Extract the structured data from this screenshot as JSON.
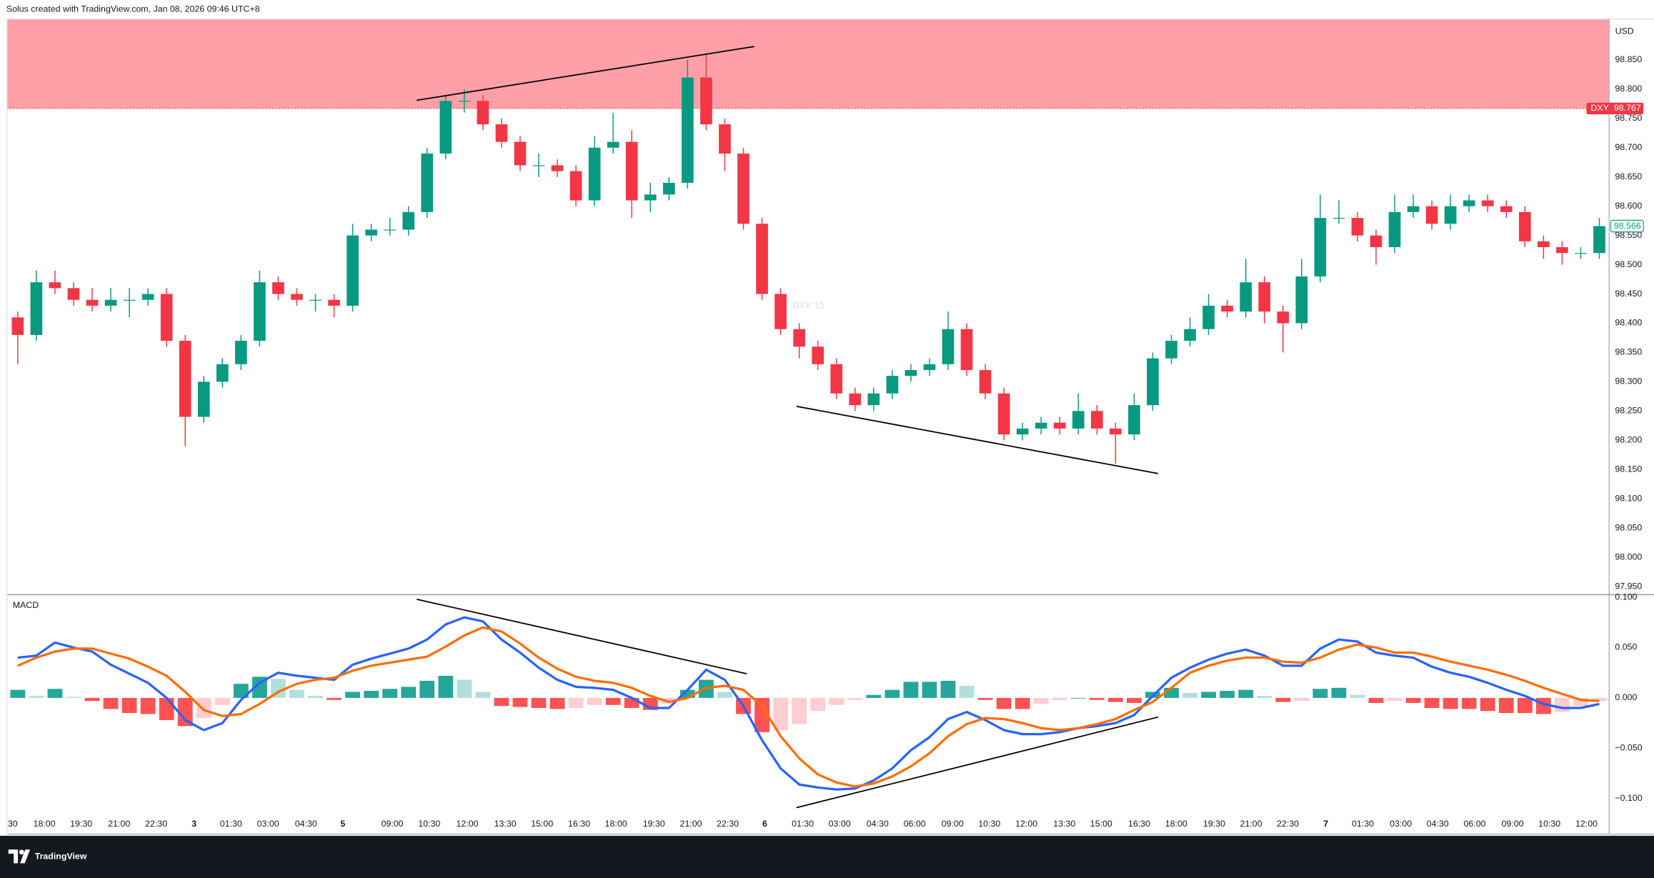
{
  "header": "Solus created with TradingView.com, Jan 08, 2026 09:46 UTC+8",
  "footer": "TradingView",
  "chart_data": [
    {
      "type": "candlestick",
      "symbol": "DXY",
      "watermark": "DXY, 15",
      "currency": "USD",
      "open": [
        98.41,
        98.38,
        98.47,
        98.46,
        98.44,
        98.43,
        98.44,
        98.44,
        98.45,
        98.37,
        98.24,
        98.3,
        98.33,
        98.37,
        98.47,
        98.45,
        98.44,
        98.44,
        98.43,
        98.55,
        98.56,
        98.56,
        98.59,
        98.69,
        98.78,
        98.78,
        98.74,
        98.71,
        98.67,
        98.67,
        98.66,
        98.61,
        98.7,
        98.71,
        98.61,
        98.62,
        98.64,
        98.82,
        98.74,
        98.69,
        98.57,
        98.45,
        98.39,
        98.36,
        98.33,
        98.28,
        98.26,
        98.28,
        98.31,
        98.32,
        98.33,
        98.39,
        98.32,
        98.28,
        98.21,
        98.22,
        98.23,
        98.22,
        98.25,
        98.22,
        98.21,
        98.26,
        98.34,
        98.37,
        98.39,
        98.43,
        98.42,
        98.47,
        98.42,
        98.4,
        98.48,
        98.58,
        98.58,
        98.55,
        98.53,
        98.59,
        98.6,
        98.57,
        98.6,
        98.61,
        98.6,
        98.59,
        98.54,
        98.53,
        98.52,
        98.52
      ],
      "high": [
        98.42,
        98.49,
        98.49,
        98.47,
        98.46,
        98.46,
        98.46,
        98.46,
        98.46,
        98.38,
        98.31,
        98.34,
        98.38,
        98.49,
        98.48,
        98.46,
        98.45,
        98.45,
        98.57,
        98.57,
        98.58,
        98.6,
        98.7,
        98.79,
        98.8,
        98.79,
        98.75,
        98.72,
        98.69,
        98.68,
        98.67,
        98.72,
        98.76,
        98.73,
        98.64,
        98.65,
        98.85,
        98.86,
        98.75,
        98.7,
        98.58,
        98.46,
        98.4,
        98.37,
        98.34,
        98.29,
        98.29,
        98.32,
        98.33,
        98.34,
        98.42,
        98.4,
        98.33,
        98.29,
        98.23,
        98.24,
        98.24,
        98.28,
        98.26,
        98.23,
        98.28,
        98.35,
        98.38,
        98.41,
        98.45,
        98.44,
        98.51,
        98.48,
        98.43,
        98.51,
        98.62,
        98.61,
        98.59,
        98.56,
        98.62,
        98.62,
        98.61,
        98.62,
        98.62,
        98.62,
        98.61,
        98.6,
        98.55,
        98.54,
        98.53,
        98.58
      ],
      "low": [
        98.33,
        98.37,
        98.45,
        98.43,
        98.42,
        98.42,
        98.41,
        98.43,
        98.36,
        98.19,
        98.23,
        98.29,
        98.32,
        98.36,
        98.44,
        98.43,
        98.42,
        98.41,
        98.42,
        98.54,
        98.55,
        98.55,
        98.58,
        98.68,
        98.76,
        98.73,
        98.7,
        98.66,
        98.65,
        98.65,
        98.6,
        98.6,
        98.69,
        98.58,
        98.59,
        98.61,
        98.63,
        98.73,
        98.66,
        98.56,
        98.44,
        98.38,
        98.34,
        98.32,
        98.27,
        98.25,
        98.25,
        98.27,
        98.3,
        98.31,
        98.32,
        98.31,
        98.27,
        98.2,
        98.2,
        98.21,
        98.21,
        98.21,
        98.21,
        98.16,
        98.2,
        98.25,
        98.33,
        98.36,
        98.38,
        98.41,
        98.41,
        98.4,
        98.35,
        98.39,
        98.47,
        98.57,
        98.54,
        98.5,
        98.52,
        98.58,
        98.56,
        98.56,
        98.59,
        98.59,
        98.58,
        98.53,
        98.51,
        98.5,
        98.51,
        98.51
      ],
      "close": [
        98.38,
        98.47,
        98.46,
        98.44,
        98.43,
        98.44,
        98.44,
        98.45,
        98.37,
        98.24,
        98.3,
        98.33,
        98.37,
        98.47,
        98.45,
        98.44,
        98.44,
        98.43,
        98.55,
        98.56,
        98.56,
        98.59,
        98.69,
        98.78,
        98.78,
        98.74,
        98.71,
        98.67,
        98.67,
        98.66,
        98.61,
        98.7,
        98.71,
        98.61,
        98.62,
        98.64,
        98.82,
        98.74,
        98.69,
        98.57,
        98.45,
        98.39,
        98.36,
        98.33,
        98.28,
        98.26,
        98.28,
        98.31,
        98.32,
        98.33,
        98.39,
        98.32,
        98.28,
        98.21,
        98.22,
        98.23,
        98.22,
        98.25,
        98.22,
        98.21,
        98.26,
        98.34,
        98.37,
        98.39,
        98.43,
        98.42,
        98.47,
        98.42,
        98.4,
        98.48,
        98.58,
        98.58,
        98.55,
        98.53,
        98.59,
        98.6,
        98.57,
        98.6,
        98.61,
        98.6,
        98.59,
        98.54,
        98.53,
        98.52,
        98.52,
        98.566
      ],
      "up_color": "#089981",
      "down_color": "#f23645",
      "xlim": [
        0,
        86
      ],
      "ylim": [
        97.937,
        98.92
      ],
      "yticks": [
        {
          "value": 97.95,
          "label": "97.950"
        },
        {
          "value": 98.0,
          "label": "98.000"
        },
        {
          "value": 98.05,
          "label": "98.050"
        },
        {
          "value": 98.1,
          "label": "98.100"
        },
        {
          "value": 98.15,
          "label": "98.150"
        },
        {
          "value": 98.2,
          "label": "98.200"
        },
        {
          "value": 98.25,
          "label": "98.250"
        },
        {
          "value": 98.3,
          "label": "98.300"
        },
        {
          "value": 98.35,
          "label": "98.350"
        },
        {
          "value": 98.4,
          "label": "98.400"
        },
        {
          "value": 98.45,
          "label": "98.450"
        },
        {
          "value": 98.5,
          "label": "98.500"
        },
        {
          "value": 98.55,
          "label": "98.550"
        },
        {
          "value": 98.6,
          "label": "98.600"
        },
        {
          "value": 98.65,
          "label": "98.650"
        },
        {
          "value": 98.7,
          "label": "98.700"
        },
        {
          "value": 98.75,
          "label": "98.750"
        },
        {
          "value": 98.8,
          "label": "98.800"
        },
        {
          "value": 98.85,
          "label": "98.850"
        }
      ],
      "zone": {
        "from": 98.767,
        "color": "#ffa0a8"
      },
      "trend_lines": [
        {
          "x": [
            21.94,
            40.08
          ],
          "y": [
            98.781,
            98.873
          ]
        },
        {
          "x": [
            42.35,
            61.79
          ],
          "y": [
            98.258,
            98.143
          ]
        }
      ]
    },
    {
      "type": "macd",
      "title": "MACD",
      "series": [
        {
          "color": "#2962ff",
          "values": [
            0.04,
            0.042,
            0.055,
            0.05,
            0.046,
            0.033,
            0.024,
            0.015,
            0.0,
            -0.022,
            -0.032,
            -0.025,
            -0.002,
            0.015,
            0.025,
            0.022,
            0.02,
            0.018,
            0.033,
            0.039,
            0.044,
            0.049,
            0.058,
            0.073,
            0.08,
            0.076,
            0.058,
            0.045,
            0.03,
            0.018,
            0.011,
            0.01,
            0.008,
            0.0,
            -0.01,
            -0.01,
            0.008,
            0.028,
            0.018,
            -0.008,
            -0.042,
            -0.07,
            -0.086,
            -0.089,
            -0.091,
            -0.09,
            -0.082,
            -0.07,
            -0.052,
            -0.039,
            -0.021,
            -0.014,
            -0.022,
            -0.032,
            -0.036,
            -0.036,
            -0.034,
            -0.03,
            -0.028,
            -0.025,
            -0.017,
            0.002,
            0.02,
            0.03,
            0.038,
            0.044,
            0.048,
            0.042,
            0.032,
            0.032,
            0.049,
            0.058,
            0.056,
            0.045,
            0.042,
            0.04,
            0.031,
            0.025,
            0.021,
            0.015,
            0.008,
            0.002,
            -0.006,
            -0.01,
            -0.01,
            -0.006
          ]
        },
        {
          "color": "#ff6d00",
          "values": [
            0.032,
            0.04,
            0.046,
            0.049,
            0.049,
            0.044,
            0.039,
            0.031,
            0.022,
            0.006,
            -0.012,
            -0.018,
            -0.016,
            -0.006,
            0.006,
            0.014,
            0.018,
            0.02,
            0.027,
            0.032,
            0.035,
            0.038,
            0.041,
            0.051,
            0.062,
            0.07,
            0.066,
            0.054,
            0.04,
            0.029,
            0.021,
            0.017,
            0.015,
            0.01,
            0.002,
            -0.004,
            0.0,
            0.01,
            0.012,
            0.008,
            -0.008,
            -0.038,
            -0.06,
            -0.076,
            -0.084,
            -0.088,
            -0.085,
            -0.078,
            -0.068,
            -0.055,
            -0.038,
            -0.026,
            -0.02,
            -0.021,
            -0.025,
            -0.03,
            -0.032,
            -0.03,
            -0.026,
            -0.021,
            -0.012,
            -0.004,
            0.01,
            0.025,
            0.032,
            0.037,
            0.04,
            0.04,
            0.036,
            0.035,
            0.04,
            0.048,
            0.053,
            0.05,
            0.045,
            0.045,
            0.041,
            0.036,
            0.032,
            0.028,
            0.023,
            0.017,
            0.01,
            0.004,
            -0.002,
            -0.003
          ]
        }
      ],
      "histogram": [
        0.008,
        0.002,
        0.009,
        0.001,
        -0.003,
        -0.011,
        -0.015,
        -0.016,
        -0.022,
        -0.028,
        -0.02,
        -0.007,
        0.014,
        0.021,
        0.019,
        0.008,
        0.002,
        -0.002,
        0.006,
        0.007,
        0.009,
        0.011,
        0.017,
        0.022,
        0.018,
        0.006,
        -0.008,
        -0.009,
        -0.01,
        -0.011,
        -0.01,
        -0.007,
        -0.007,
        -0.01,
        -0.012,
        -0.006,
        0.008,
        0.018,
        0.006,
        -0.016,
        -0.034,
        -0.032,
        -0.026,
        -0.013,
        -0.007,
        -0.002,
        0.003,
        0.008,
        0.016,
        0.016,
        0.017,
        0.012,
        -0.002,
        -0.011,
        -0.011,
        -0.006,
        -0.002,
        0.0,
        -0.002,
        -0.004,
        -0.005,
        0.006,
        0.01,
        0.005,
        0.006,
        0.007,
        0.008,
        0.002,
        -0.004,
        -0.003,
        0.009,
        0.01,
        0.003,
        -0.005,
        -0.003,
        -0.005,
        -0.01,
        -0.011,
        -0.011,
        -0.013,
        -0.015,
        -0.015,
        -0.016,
        -0.014,
        -0.008,
        -0.003
      ],
      "histogram_palette": [
        "#26a69a",
        "#b2dfdb",
        "#ffcdd2",
        "#ff5252"
      ],
      "xlim": [
        0,
        86
      ],
      "ylim": [
        -0.116,
        0.101
      ],
      "yticks": [
        {
          "value": 0.1,
          "label": "0.100"
        },
        {
          "value": 0.05,
          "label": "0.050"
        },
        {
          "value": 0,
          "label": "0.000"
        },
        {
          "value": -0.05,
          "label": "−0.050"
        },
        {
          "value": -0.1,
          "label": "−0.100"
        }
      ],
      "xticks": [
        {
          "value": 0.23,
          "label": "30"
        },
        {
          "value": 1.93,
          "label": "18:00"
        },
        {
          "value": 3.91,
          "label": "19:30"
        },
        {
          "value": 5.95,
          "label": "21:00"
        },
        {
          "value": 7.94,
          "label": "22:30"
        },
        {
          "value": 9.98,
          "label": "3"
        },
        {
          "value": 11.96,
          "label": "01:30"
        },
        {
          "value": 13.95,
          "label": "03:00"
        },
        {
          "value": 15.99,
          "label": "04:30"
        },
        {
          "value": 17.97,
          "label": "5"
        },
        {
          "value": 20.63,
          "label": "09:00"
        },
        {
          "value": 22.62,
          "label": "10:30"
        },
        {
          "value": 24.66,
          "label": "12:00"
        },
        {
          "value": 26.7,
          "label": "13:30"
        },
        {
          "value": 28.68,
          "label": "15:00"
        },
        {
          "value": 30.67,
          "label": "16:30"
        },
        {
          "value": 32.65,
          "label": "18:00"
        },
        {
          "value": 34.69,
          "label": "19:30"
        },
        {
          "value": 36.68,
          "label": "21:00"
        },
        {
          "value": 38.66,
          "label": "22:30"
        },
        {
          "value": 40.65,
          "label": "6"
        },
        {
          "value": 42.69,
          "label": "01:30"
        },
        {
          "value": 44.67,
          "label": "03:00"
        },
        {
          "value": 46.71,
          "label": "04:30"
        },
        {
          "value": 48.7,
          "label": "06:00"
        },
        {
          "value": 50.74,
          "label": "09:00"
        },
        {
          "value": 52.72,
          "label": "10:30"
        },
        {
          "value": 54.71,
          "label": "12:00"
        },
        {
          "value": 56.75,
          "label": "13:30"
        },
        {
          "value": 58.73,
          "label": "15:00"
        },
        {
          "value": 60.77,
          "label": "16:30"
        },
        {
          "value": 62.76,
          "label": "18:00"
        },
        {
          "value": 64.8,
          "label": "19:30"
        },
        {
          "value": 66.78,
          "label": "21:00"
        },
        {
          "value": 68.76,
          "label": "22:30"
        },
        {
          "value": 70.8,
          "label": "7"
        },
        {
          "value": 72.79,
          "label": "01:30"
        },
        {
          "value": 74.83,
          "label": "03:00"
        },
        {
          "value": 76.81,
          "label": "04:30"
        },
        {
          "value": 78.8,
          "label": "06:00"
        },
        {
          "value": 80.84,
          "label": "09:00"
        },
        {
          "value": 82.82,
          "label": "10:30"
        },
        {
          "value": 84.81,
          "label": "12:00"
        }
      ],
      "trend_lines": [
        {
          "x": [
            21.94,
            39.68
          ],
          "y": [
            0.098,
            0.024
          ]
        },
        {
          "x": [
            42.35,
            61.79
          ],
          "y": [
            -0.109,
            -0.019
          ]
        }
      ]
    }
  ]
}
